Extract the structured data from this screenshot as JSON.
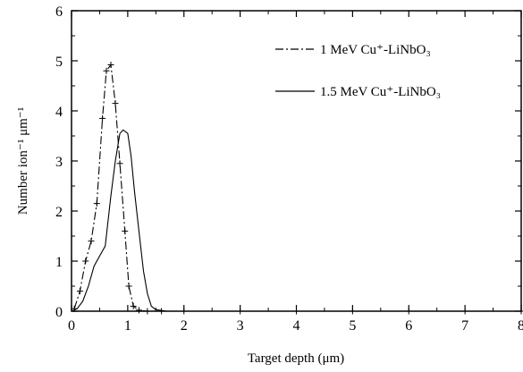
{
  "chart_data": {
    "type": "line",
    "title": "",
    "xlabel": "Target depth (μm)",
    "ylabel": "Number ion⁻¹ μm⁻¹",
    "xlim": [
      0,
      8
    ],
    "ylim": [
      0,
      6
    ],
    "x_ticks": [
      0,
      1,
      2,
      3,
      4,
      5,
      6,
      7,
      8
    ],
    "y_ticks": [
      0,
      1,
      2,
      3,
      4,
      5,
      6
    ],
    "grid": false,
    "legend_position": "top-right",
    "series": [
      {
        "name": "1 MeV Cu⁺-LiNbO₃",
        "line_style": "dash-dot",
        "marker": "plus",
        "color": "#000000",
        "x": [
          0.05,
          0.15,
          0.25,
          0.35,
          0.45,
          0.55,
          0.62,
          0.7,
          0.78,
          0.86,
          0.95,
          1.02,
          1.1,
          1.2,
          1.35,
          1.6,
          2.0,
          3.0,
          4.0,
          5.0,
          6.0,
          7.0,
          8.0
        ],
        "y": [
          0.05,
          0.4,
          1.0,
          1.4,
          2.15,
          3.85,
          4.8,
          4.92,
          4.15,
          2.95,
          1.6,
          0.5,
          0.1,
          0.02,
          0.0,
          0.0,
          0.0,
          0.0,
          0.0,
          0.0,
          0.0,
          0.0,
          0.0
        ]
      },
      {
        "name": "1.5 MeV Cu⁺-LiNbO₃",
        "line_style": "solid",
        "marker": "none",
        "color": "#000000",
        "x": [
          0.0,
          0.1,
          0.2,
          0.3,
          0.4,
          0.5,
          0.6,
          0.7,
          0.78,
          0.86,
          0.92,
          1.0,
          1.06,
          1.12,
          1.2,
          1.28,
          1.35,
          1.42,
          1.5,
          1.7,
          2.0,
          3.0,
          4.0,
          5.0,
          6.0,
          7.0,
          8.0
        ],
        "y": [
          0.0,
          0.05,
          0.2,
          0.5,
          0.9,
          1.1,
          1.3,
          2.3,
          3.0,
          3.55,
          3.62,
          3.55,
          3.1,
          2.4,
          1.6,
          0.8,
          0.35,
          0.1,
          0.03,
          0.0,
          0.0,
          0.0,
          0.0,
          0.0,
          0.0,
          0.0,
          0.0
        ]
      }
    ]
  }
}
